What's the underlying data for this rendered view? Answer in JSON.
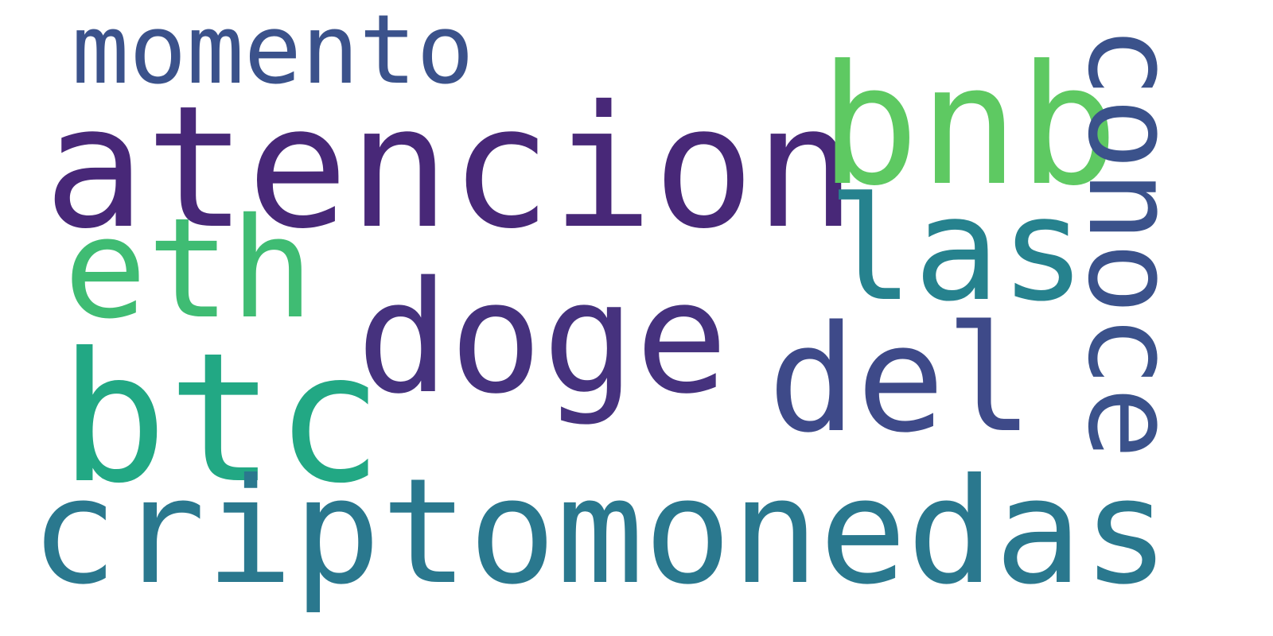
{
  "words": [
    {
      "text": "momento",
      "color": "#3b528b"
    },
    {
      "text": "atencion",
      "color": "#482878"
    },
    {
      "text": "bnb",
      "color": "#5ec962"
    },
    {
      "text": "conoce",
      "color": "#3b528b"
    },
    {
      "text": "eth",
      "color": "#3fbc73"
    },
    {
      "text": "las",
      "color": "#26828e"
    },
    {
      "text": "doge",
      "color": "#46327e"
    },
    {
      "text": "del",
      "color": "#3e4a89"
    },
    {
      "text": "btc",
      "color": "#22a884"
    },
    {
      "text": "criptomonedas",
      "color": "#2a788e"
    }
  ]
}
